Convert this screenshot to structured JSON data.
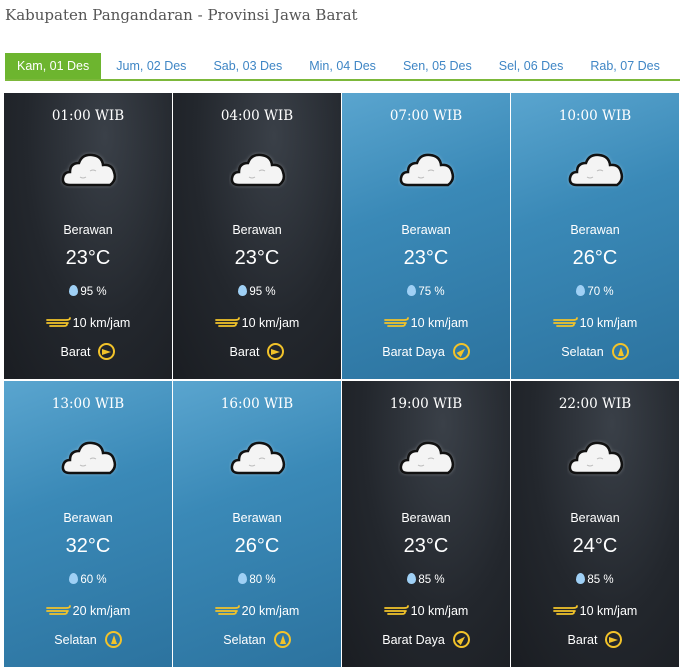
{
  "title": "Kabupaten Pangandaran - Provinsi Jawa Barat",
  "tabs": [
    "Kam, 01 Des",
    "Jum, 02 Des",
    "Sab, 03 Des",
    "Min, 04 Des",
    "Sen, 05 Des",
    "Sel, 06 Des",
    "Rab, 07 Des"
  ],
  "active_tab": 0,
  "forecasts": [
    {
      "time": "01:00 WIB",
      "condition": "Berawan",
      "temp": "23°C",
      "humidity": "95 %",
      "wind": "10 km/jam",
      "direction": "Barat",
      "theme": "dark",
      "icon": "cloud-icon"
    },
    {
      "time": "04:00 WIB",
      "condition": "Berawan",
      "temp": "23°C",
      "humidity": "95 %",
      "wind": "10 km/jam",
      "direction": "Barat",
      "theme": "dark",
      "icon": "cloud-icon"
    },
    {
      "time": "07:00 WIB",
      "condition": "Berawan",
      "temp": "23°C",
      "humidity": "75 %",
      "wind": "10 km/jam",
      "direction": "Barat Daya",
      "theme": "blue",
      "icon": "cloud-icon"
    },
    {
      "time": "10:00 WIB",
      "condition": "Berawan",
      "temp": "26°C",
      "humidity": "70 %",
      "wind": "10 km/jam",
      "direction": "Selatan",
      "theme": "blue",
      "icon": "cloud-icon"
    },
    {
      "time": "13:00 WIB",
      "condition": "Berawan",
      "temp": "32°C",
      "humidity": "60 %",
      "wind": "20 km/jam",
      "direction": "Selatan",
      "theme": "blue",
      "icon": "cloud-icon"
    },
    {
      "time": "16:00 WIB",
      "condition": "Berawan",
      "temp": "26°C",
      "humidity": "80 %",
      "wind": "20 km/jam",
      "direction": "Selatan",
      "theme": "blue",
      "icon": "cloud-icon"
    },
    {
      "time": "19:00 WIB",
      "condition": "Berawan",
      "temp": "23°C",
      "humidity": "85 %",
      "wind": "10 km/jam",
      "direction": "Barat Daya",
      "theme": "dark",
      "icon": "cloud-icon"
    },
    {
      "time": "22:00 WIB",
      "condition": "Berawan",
      "temp": "24°C",
      "humidity": "85 %",
      "wind": "10 km/jam",
      "direction": "Barat",
      "theme": "dark",
      "icon": "cloud-icon"
    }
  ],
  "colors": {
    "accent": "#6db52f",
    "link": "#3f86c5",
    "wind_icon": "#f2c32a",
    "humidity_icon": "#9fd0f5"
  }
}
